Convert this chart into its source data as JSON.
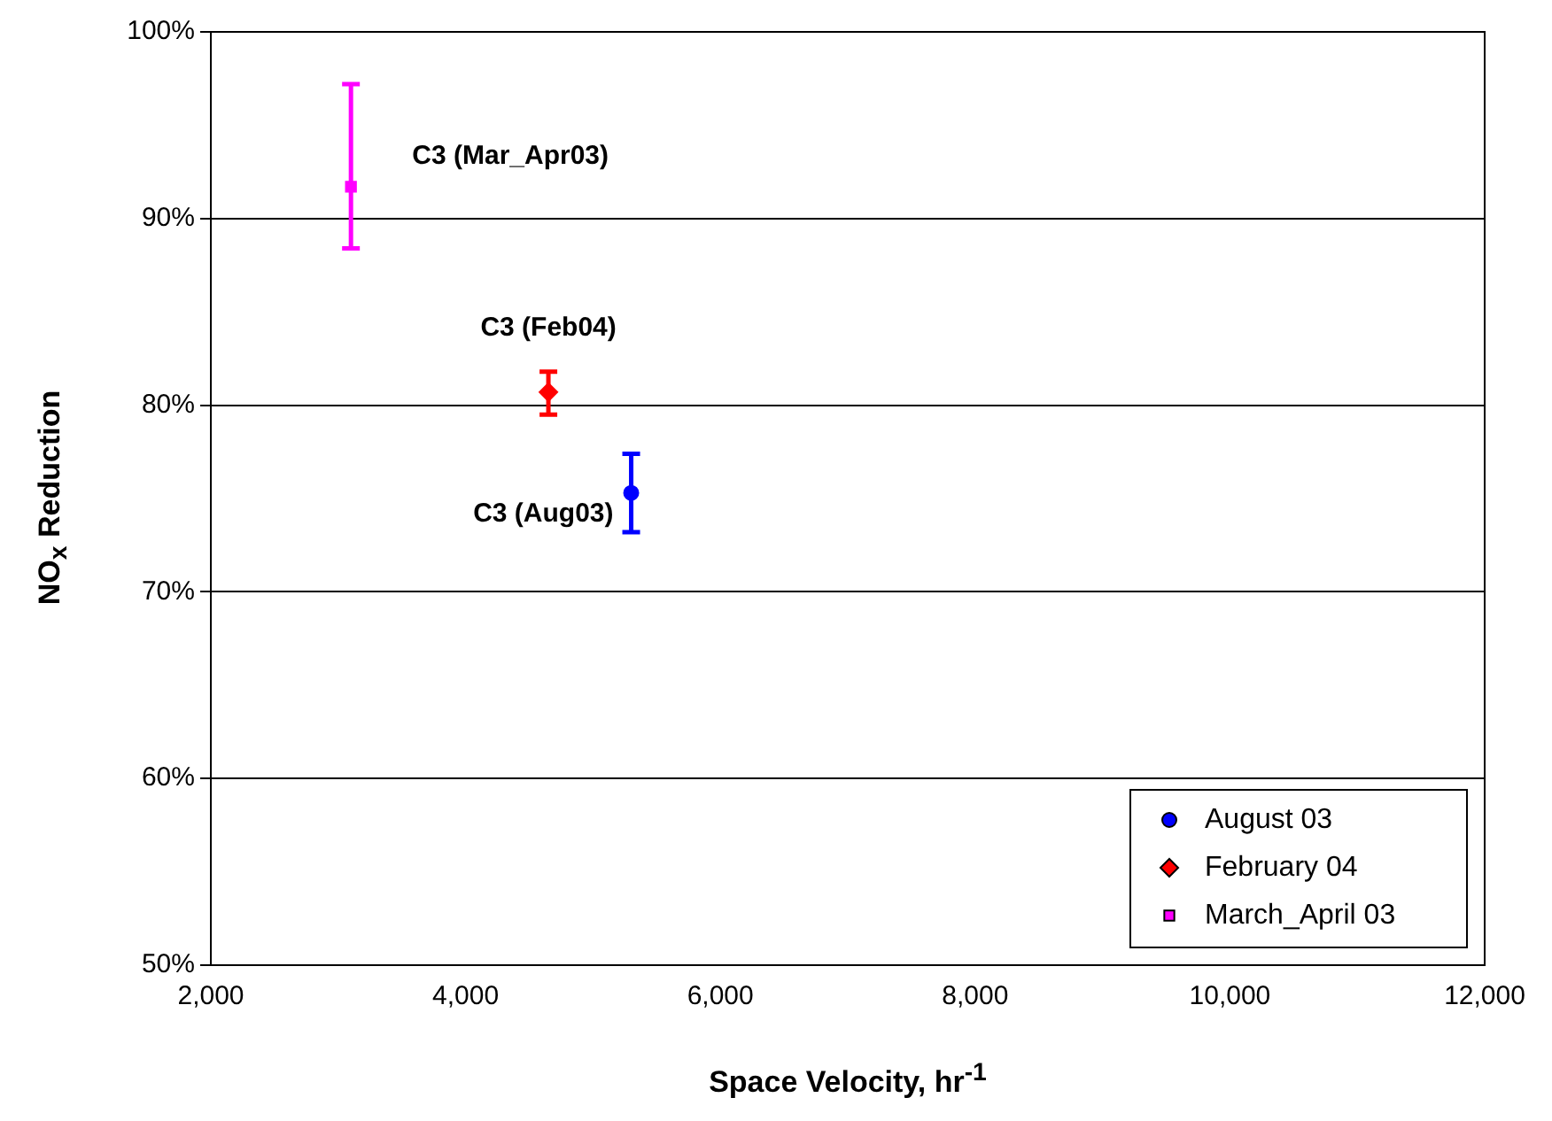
{
  "chart_data": {
    "type": "scatter",
    "xlabel": "Space Velocity, hr$^{-1}$",
    "ylabel": "NO$_{x}$ Reduction",
    "series": [
      {
        "name": "August 03",
        "color": "#0000ff",
        "marker": "circle",
        "x": [
          5300
        ],
        "values": [
          75.3
        ],
        "errors": [
          [
            73.2,
            77.4
          ]
        ]
      },
      {
        "name": "February 04",
        "color": "#ff0000",
        "marker": "diamond",
        "x": [
          4650
        ],
        "values": [
          80.7
        ],
        "errors": [
          [
            79.5,
            81.8
          ]
        ]
      },
      {
        "name": "March_April 03",
        "color": "#ff00ff",
        "marker": "square",
        "x": [
          3100
        ],
        "values": [
          91.7
        ],
        "errors": [
          [
            88.4,
            97.2
          ]
        ]
      }
    ],
    "xlim": [
      2000,
      12000
    ],
    "xticks": [
      {
        "value": 2000,
        "label": "2,000"
      },
      {
        "value": 4000,
        "label": "4,000"
      },
      {
        "value": 6000,
        "label": "6,000"
      },
      {
        "value": 8000,
        "label": "8,000"
      },
      {
        "value": 10000,
        "label": "10,000"
      },
      {
        "value": 12000,
        "label": "12,000"
      }
    ],
    "ylim": [
      50,
      100
    ],
    "yticks": [
      {
        "value": 50,
        "label": "50%"
      },
      {
        "value": 60,
        "label": "60%"
      },
      {
        "value": 70,
        "label": "70%"
      },
      {
        "value": 80,
        "label": "80%"
      },
      {
        "value": 90,
        "label": "90%"
      },
      {
        "value": 100,
        "label": "100%"
      }
    ],
    "grid": "y",
    "legend": "bottom right",
    "annotations": [
      {
        "text": "C3 (Mar_Apr03)",
        "x": 3100,
        "y": 91.7
      },
      {
        "text": "C3 (Feb04)",
        "x": 4650,
        "y": 80.7
      },
      {
        "text": "C3 (Aug03)",
        "x": 5300,
        "y": 75.3
      }
    ]
  }
}
